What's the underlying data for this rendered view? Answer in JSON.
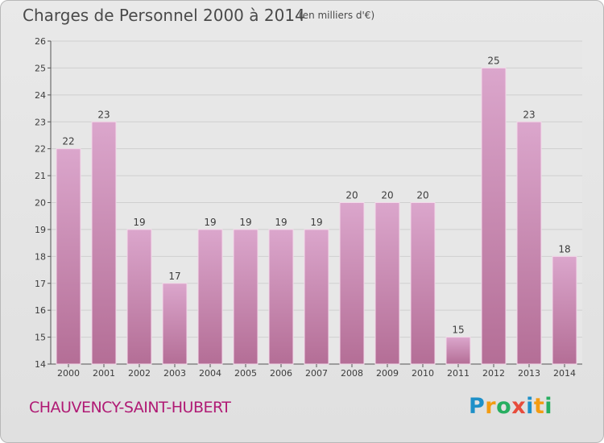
{
  "chart_data": {
    "type": "bar",
    "title": "Charges de Personnel 2000 à 2014",
    "subtitle": "(en milliers d'€)",
    "categories": [
      "2000",
      "2001",
      "2002",
      "2003",
      "2004",
      "2005",
      "2006",
      "2007",
      "2008",
      "2009",
      "2010",
      "2011",
      "2012",
      "2013",
      "2014"
    ],
    "values": [
      22,
      23,
      19,
      17,
      19,
      19,
      19,
      19,
      20,
      20,
      20,
      15,
      25,
      23,
      18
    ],
    "ylim": [
      14,
      26
    ],
    "yticks": [
      14,
      15,
      16,
      17,
      18,
      19,
      20,
      21,
      22,
      23,
      24,
      25,
      26
    ],
    "grid": true,
    "bar_color_top": "#dba6cc",
    "bar_color_bottom": "#b46e96",
    "bar_edge_color": "#f3d9ea"
  },
  "footer": {
    "commune": "CHAUVENCY-SAINT-HUBERT",
    "logo": {
      "text": "Proxiti",
      "letter_colors": [
        "#1e90c8",
        "#f39c12",
        "#27ae60",
        "#e74c3c",
        "#1e90c8",
        "#f39c12",
        "#27ae60"
      ]
    }
  }
}
